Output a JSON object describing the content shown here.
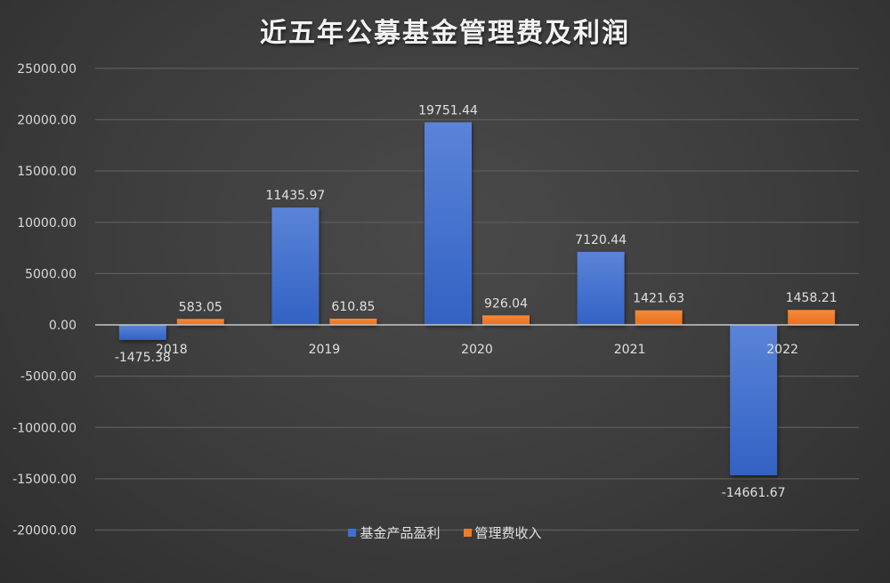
{
  "chart_data": {
    "type": "bar",
    "title": "近五年公募基金管理费及利润",
    "categories": [
      "2018",
      "2019",
      "2020",
      "2021",
      "2022"
    ],
    "series": [
      {
        "name": "基金产品盈利",
        "color": "#3f6fd1",
        "values": [
          -1475.38,
          11435.97,
          19751.44,
          7120.44,
          -14661.67
        ],
        "labels": [
          "-1475.38",
          "11435.97",
          "19751.44",
          "7120.44",
          "-14661.67"
        ]
      },
      {
        "name": "管理费收入",
        "color": "#f07b26",
        "values": [
          583.05,
          610.85,
          926.04,
          1421.63,
          1458.21
        ],
        "labels": [
          "583.05",
          "610.85",
          "926.04",
          "1421.63",
          "1458.21"
        ]
      }
    ],
    "xlabel": "",
    "ylabel": "",
    "ylim": [
      -20000,
      25000
    ],
    "yticks": [
      "25000.00",
      "20000.00",
      "15000.00",
      "10000.00",
      "5000.00",
      "0.00",
      "-5000.00",
      "-10000.00",
      "-15000.00",
      "-20000.00"
    ],
    "grid": true,
    "legend_position": "bottom"
  }
}
